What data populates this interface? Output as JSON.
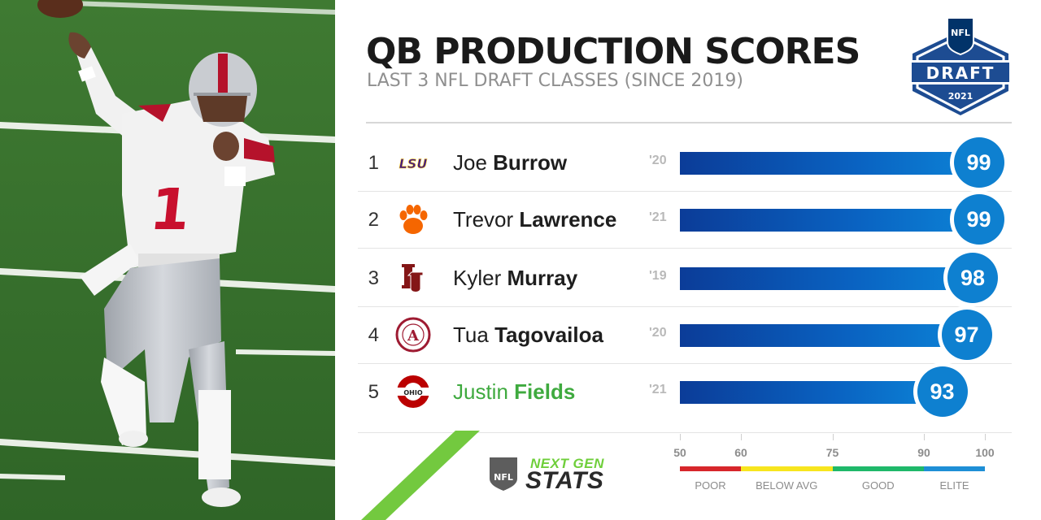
{
  "header": {
    "title": "QB PRODUCTION SCORES",
    "subtitle": "LAST 3 NFL DRAFT CLASSES (SINCE 2019)"
  },
  "draft_logo": {
    "top": "NFL",
    "word": "DRAFT",
    "year": "2021"
  },
  "photo": {
    "jersey_number": "1"
  },
  "chart_data": {
    "type": "bar",
    "orientation": "horizontal",
    "title": "QB PRODUCTION SCORES",
    "subtitle": "LAST 3 NFL DRAFT CLASSES (SINCE 2019)",
    "xlim": [
      50,
      100
    ],
    "ticks": [
      50,
      60,
      75,
      90,
      100
    ],
    "rows": [
      {
        "rank": "1",
        "school": "LSU",
        "school_logo": "lsu-logo",
        "first": "Joe",
        "last": "Burrow",
        "year": "'20",
        "value": 99,
        "highlight": false
      },
      {
        "rank": "2",
        "school": "Clemson",
        "school_logo": "clemson-paw-logo",
        "first": "Trevor",
        "last": "Lawrence",
        "year": "'21",
        "value": 99,
        "highlight": false
      },
      {
        "rank": "3",
        "school": "Oklahoma",
        "school_logo": "oklahoma-ou-logo",
        "first": "Kyler",
        "last": "Murray",
        "year": "'19",
        "value": 98,
        "highlight": false
      },
      {
        "rank": "4",
        "school": "Alabama",
        "school_logo": "alabama-seal-logo",
        "first": "Tua",
        "last": "Tagovailoa",
        "year": "'20",
        "value": 97,
        "highlight": false
      },
      {
        "rank": "5",
        "school": "Ohio State",
        "school_logo": "ohio-state-logo",
        "first": "Justin",
        "last": "Fields",
        "year": "'21",
        "value": 93,
        "highlight": true
      }
    ],
    "tiers": [
      {
        "label": "POOR",
        "from": 50,
        "to": 60,
        "color": "#d7262b"
      },
      {
        "label": "BELOW AVG",
        "from": 60,
        "to": 75,
        "color": "#f7e51e"
      },
      {
        "label": "GOOD",
        "from": 75,
        "to": 90,
        "color": "#1fb86a"
      },
      {
        "label": "ELITE",
        "from": 90,
        "to": 100,
        "color": "#1e8fd6"
      }
    ]
  },
  "branding": {
    "line1": "NEXT GEN",
    "line2": "STATS",
    "nfl": "NFL"
  },
  "colors": {
    "bar_dark": "#0b3c98",
    "bar_light": "#0c83d6",
    "bubble": "#0e80d0",
    "highlight": "#3faa3f"
  }
}
